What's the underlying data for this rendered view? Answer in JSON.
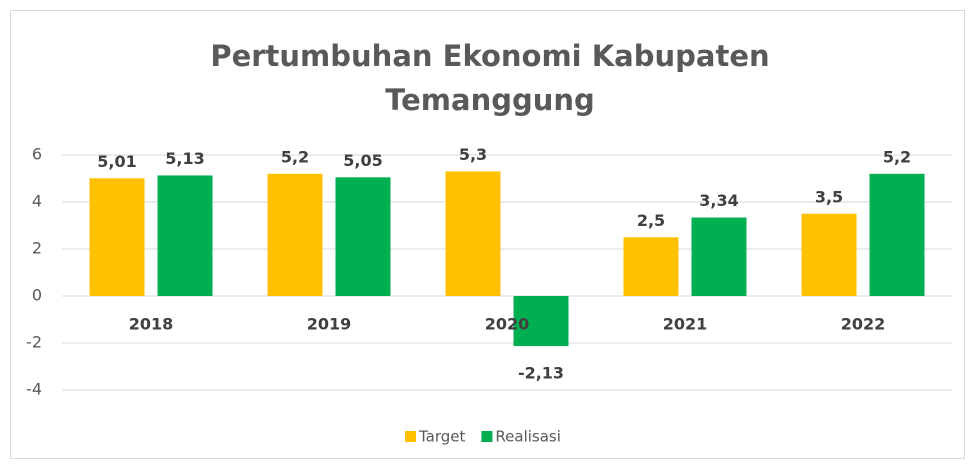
{
  "chart_data": {
    "type": "bar",
    "title": "Pertumbuhan Ekonomi Kabupaten Temanggung",
    "categories": [
      "2018",
      "2019",
      "2020",
      "2021",
      "2022"
    ],
    "series": [
      {
        "name": "Target",
        "color": "#FFC000",
        "values": [
          5.01,
          5.2,
          5.3,
          2.5,
          3.5
        ],
        "value_labels": [
          "5,01",
          "5,2",
          "5,3",
          "2,5",
          "3,5"
        ]
      },
      {
        "name": "Realisasi",
        "color": "#00B050",
        "values": [
          5.13,
          5.05,
          -2.13,
          3.34,
          5.2
        ],
        "value_labels": [
          "5,13",
          "5,05",
          "-2,13",
          "3,34",
          "5,2"
        ]
      }
    ],
    "ylim": [
      -4,
      6
    ],
    "yticks": [
      -4,
      -2,
      0,
      2,
      4,
      6
    ],
    "grid": true,
    "legend": "bottom"
  }
}
